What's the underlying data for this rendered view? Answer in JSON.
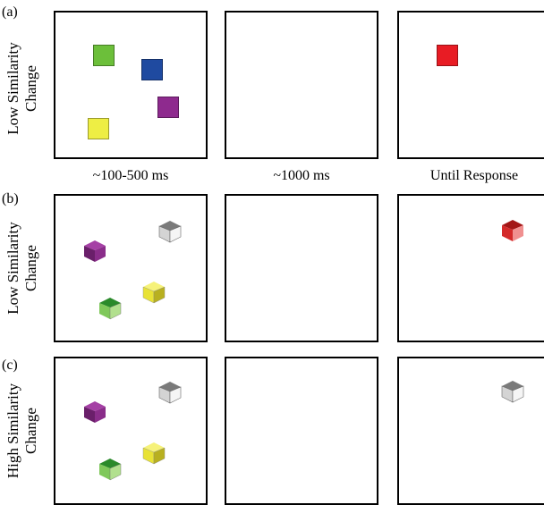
{
  "panels": [
    {
      "letter": "(a)",
      "side_label_line1": "Low Similarity",
      "side_label_line2": "Change"
    },
    {
      "letter": "(b)",
      "side_label_line1": "Low Similarity",
      "side_label_line2": "Change"
    },
    {
      "letter": "(c)",
      "side_label_line1": "High Similarity",
      "side_label_line2": "Change"
    }
  ],
  "timings": [
    "~100-500 ms",
    "~1000 ms",
    "Until Response"
  ],
  "colors": {
    "green": "#6cbf3a",
    "blue": "#1f4aa0",
    "purple": "#8e2a8e",
    "yellow": "#eeee44",
    "red": "#e81c24",
    "gray": "#9a9a9a",
    "dark_green": "#2a8a2a"
  }
}
